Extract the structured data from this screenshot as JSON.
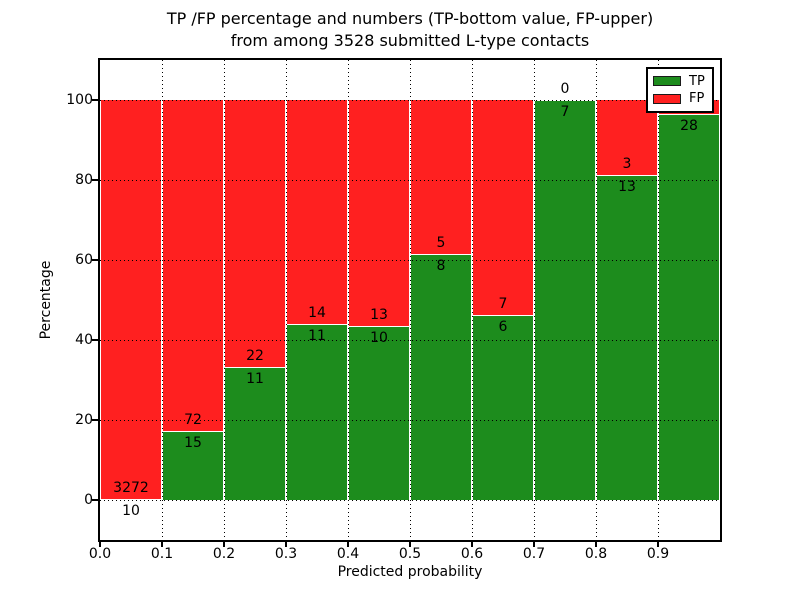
{
  "title": {
    "line1": "TP /FP percentage and numbers (TP-bottom value, FP-upper)",
    "line2": "from among 3528 submitted L-type contacts"
  },
  "axes": {
    "ylabel": "Percentage",
    "xlabel": "Predicted probability",
    "ytick_values": [
      0,
      20,
      40,
      60,
      80,
      100
    ],
    "ytick_labels": [
      "0",
      "20",
      "40",
      "60",
      "80",
      "100"
    ],
    "xtick_values": [
      0.0,
      0.1,
      0.2,
      0.3,
      0.4,
      0.5,
      0.6,
      0.7,
      0.8,
      0.9
    ],
    "xtick_labels": [
      "0.0",
      "0.1",
      "0.2",
      "0.3",
      "0.4",
      "0.5",
      "0.6",
      "0.7",
      "0.8",
      "0.9"
    ],
    "ylim": [
      -10,
      110
    ],
    "xlim": [
      0.0,
      1.0
    ],
    "grid": "dotted"
  },
  "colors": {
    "tp": "#1d8c1d",
    "fp": "#ff2020",
    "grid": "#000000",
    "background": "#ffffff"
  },
  "legend": {
    "items": [
      {
        "label": "TP",
        "color_key": "tp"
      },
      {
        "label": "FP",
        "color_key": "fp"
      }
    ],
    "position": "upper-right"
  },
  "chart_data": {
    "type": "bar",
    "mode": "stacked-normalized-percent",
    "bin_width": 0.1,
    "bin_starts": [
      0.0,
      0.1,
      0.2,
      0.3,
      0.4,
      0.5,
      0.6,
      0.7,
      0.8,
      0.9
    ],
    "series": [
      {
        "name": "TP",
        "values": [
          10,
          15,
          11,
          11,
          10,
          8,
          6,
          7,
          13,
          28
        ]
      },
      {
        "name": "FP",
        "values": [
          3272,
          72,
          22,
          14,
          13,
          5,
          7,
          0,
          3,
          1
        ]
      }
    ],
    "tp_percent": [
      0.3,
      17.2,
      33.3,
      44.0,
      43.5,
      61.5,
      46.2,
      100.0,
      81.3,
      96.6
    ],
    "tp_labels": [
      "10",
      "15",
      "11",
      "11",
      "10",
      "8",
      "6",
      "7",
      "13",
      "28"
    ],
    "fp_labels": [
      "3272",
      "72",
      "22",
      "14",
      "13",
      "5",
      "7",
      "0",
      "3",
      ""
    ],
    "total_contacts": 3528,
    "ylim": [
      -10,
      110
    ],
    "legend_position": "upper right",
    "grid": "dotted"
  }
}
